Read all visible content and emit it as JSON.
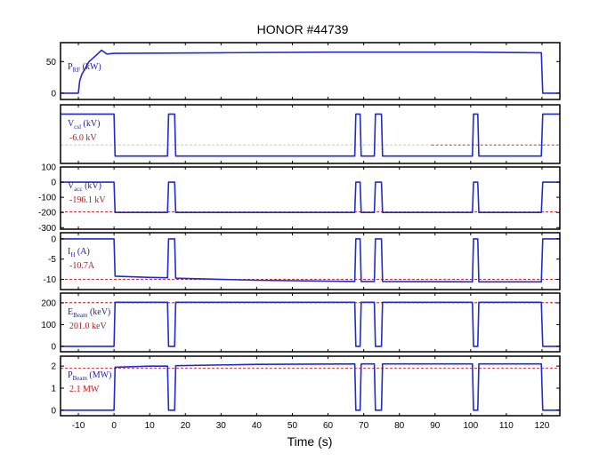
{
  "chart_data": {
    "type": "line",
    "title": "HONOR #44739",
    "xlabel": "Time (s)",
    "xlim": [
      -15,
      125
    ],
    "xticks": [
      -10,
      0,
      10,
      20,
      30,
      40,
      50,
      60,
      70,
      80,
      90,
      100,
      110,
      120
    ],
    "xtick_labels": [
      "-10",
      "0",
      "10",
      "20",
      "30",
      "40",
      "50",
      "60",
      "70",
      "80",
      "90",
      "100",
      "110",
      "120"
    ],
    "panels": [
      {
        "id": "prf",
        "label_main": "P",
        "label_sub": "RF",
        "label_rest": " (kW)",
        "value_text": "",
        "ylim": [
          -10,
          80
        ],
        "yticks": [
          0,
          50
        ],
        "ytick_labels": [
          "0",
          "50"
        ],
        "reference": null,
        "x": [
          -15,
          -10,
          -9.6,
          -9,
          -7,
          -5,
          -3.5,
          -2,
          0,
          30,
          60,
          100,
          119.8,
          120.2,
          125
        ],
        "y": [
          0,
          0,
          20,
          30,
          50,
          60,
          68,
          62,
          63,
          64,
          65,
          65,
          64,
          0,
          0
        ]
      },
      {
        "id": "vcsl",
        "label_main": "V",
        "label_sub": "csl",
        "label_rest": " (kV)",
        "value_text": "-6.0 kV",
        "ylim": [
          -8,
          1.5
        ],
        "yticks": [],
        "ytick_labels": [],
        "reference": {
          "y": -5.0,
          "x_start": 89,
          "dense_from": 89
        },
        "x": [
          -15,
          0,
          0.3,
          15,
          15.3,
          17,
          17.3,
          67.5,
          67.8,
          69,
          69.3,
          73,
          73.3,
          75,
          75.3,
          100.5,
          100.8,
          102,
          102.3,
          119.8,
          120.2,
          125
        ],
        "y": [
          0,
          0,
          -6.8,
          -6.8,
          0,
          0,
          -6.8,
          -6.8,
          0,
          0,
          -6.8,
          -6.8,
          0,
          0,
          -6.8,
          -6.8,
          0,
          0,
          -6.8,
          -6.8,
          0,
          0
        ]
      },
      {
        "id": "vacc",
        "label_main": "V",
        "label_sub": "acc",
        "label_rest": " (kV)",
        "value_text": "-196.1 kV",
        "ylim": [
          -310,
          100
        ],
        "yticks": [
          100,
          0,
          -100,
          -200,
          -300
        ],
        "ytick_labels": [
          "100",
          "0",
          "-100",
          "-200",
          "-300"
        ],
        "reference": {
          "y": -196.1
        },
        "x": [
          -15,
          0,
          0.3,
          15,
          15.3,
          17,
          17.3,
          67.5,
          67.8,
          69,
          69.3,
          73,
          73.3,
          75,
          75.3,
          100.5,
          100.8,
          102,
          102.3,
          119.8,
          120.2,
          125
        ],
        "y": [
          0,
          0,
          -200,
          -200,
          0,
          0,
          -200,
          -200,
          0,
          0,
          -200,
          -200,
          0,
          0,
          -200,
          -200,
          0,
          0,
          -200,
          -200,
          0,
          0
        ]
      },
      {
        "id": "ih",
        "label_main": "I",
        "label_sub": "H",
        "label_rest": " (A)",
        "value_text": "-10.7A",
        "ylim": [
          -12.5,
          1.5
        ],
        "yticks": [
          0,
          -5,
          -10
        ],
        "ytick_labels": [
          "0",
          "-5",
          "-10"
        ],
        "reference": {
          "y": -10.0
        },
        "x": [
          -15,
          0,
          0.3,
          10,
          15,
          15.3,
          17,
          17.3,
          40,
          67.5,
          67.8,
          69,
          69.3,
          73,
          73.3,
          75,
          75.3,
          100.5,
          100.8,
          102,
          102.3,
          119.8,
          120.2,
          125
        ],
        "y": [
          0,
          0,
          -9.2,
          -9.5,
          -9.6,
          0,
          0,
          -9.7,
          -10.2,
          -10.5,
          0,
          0,
          -10.5,
          -10.5,
          0,
          0,
          -10.5,
          -10.6,
          0,
          0,
          -10.6,
          -10.6,
          0,
          0
        ]
      },
      {
        "id": "ebeam",
        "label_main": "E",
        "label_sub": "Beam",
        "label_rest": " (keV)",
        "value_text": "201.0 keV",
        "ylim": [
          -25,
          245
        ],
        "yticks": [
          200,
          100,
          0
        ],
        "ytick_labels": [
          "200",
          "100",
          "0"
        ],
        "reference": {
          "y": 201.0
        },
        "x": [
          -15,
          0,
          0.3,
          15,
          15.3,
          17,
          17.3,
          67.5,
          67.8,
          69,
          69.3,
          73,
          73.3,
          75,
          75.3,
          100.5,
          100.8,
          102,
          102.3,
          119.8,
          120.2,
          125
        ],
        "y": [
          0,
          0,
          203,
          203,
          0,
          0,
          203,
          203,
          0,
          0,
          203,
          203,
          0,
          0,
          203,
          203,
          0,
          0,
          203,
          203,
          0,
          0
        ]
      },
      {
        "id": "pbeam",
        "label_main": "P",
        "label_sub": "Beam",
        "label_rest": " (MW)",
        "value_text": "2.1 MW",
        "ylim": [
          -0.25,
          2.45
        ],
        "yticks": [
          2,
          1,
          0
        ],
        "ytick_labels": [
          "2",
          "1",
          "0"
        ],
        "reference": {
          "y": 1.9
        },
        "x": [
          -15,
          0,
          0.3,
          10,
          15,
          15.3,
          17,
          17.3,
          40,
          67.5,
          67.8,
          69,
          69.3,
          73,
          73.3,
          75,
          75.3,
          100.5,
          100.8,
          102,
          102.3,
          119.8,
          120.2,
          125
        ],
        "y": [
          0,
          0,
          1.95,
          2.0,
          2.0,
          0,
          0,
          2.02,
          2.08,
          2.1,
          0,
          0,
          2.1,
          2.1,
          0,
          0,
          2.1,
          2.1,
          0,
          0,
          2.1,
          2.1,
          0,
          0
        ]
      }
    ]
  }
}
